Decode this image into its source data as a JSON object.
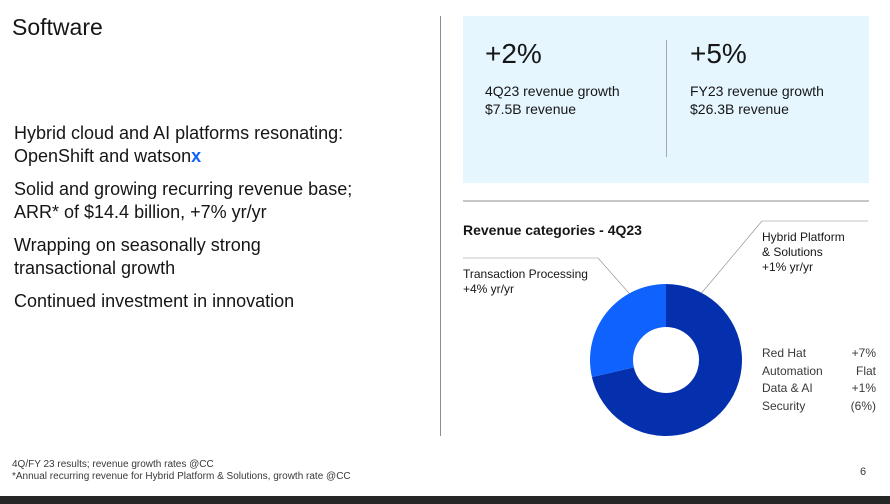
{
  "title": "Software",
  "bullets": [
    {
      "text": "Hybrid cloud and AI platforms resonating: OpenShift and watson",
      "accent": "x"
    },
    {
      "text": "Solid and growing recurring revenue base; ARR* of $14.4 billion, +7% yr/yr"
    },
    {
      "text": "Wrapping on seasonally strong transactional growth"
    },
    {
      "text": "Continued investment in innovation"
    }
  ],
  "kpis": [
    {
      "value": "+2%",
      "line1": "4Q23 revenue growth",
      "line2": "$7.5B revenue"
    },
    {
      "value": "+5%",
      "line1": "FY23 revenue growth",
      "line2": "$26.3B revenue"
    }
  ],
  "chart_data": {
    "type": "pie",
    "title": "Revenue categories - 4Q23",
    "donut": true,
    "slices": [
      {
        "name": "Hybrid Platform & Solutions",
        "share": 0.714,
        "growth": "+1% yr/yr",
        "color": "#0530ad"
      },
      {
        "name": "Transaction Processing",
        "share": 0.286,
        "growth": "+4% yr/yr",
        "color": "#0f62fe"
      }
    ],
    "segments": [
      {
        "name": "Red Hat",
        "value": "+7%"
      },
      {
        "name": "Automation",
        "value": "Flat"
      },
      {
        "name": "Data & AI",
        "value": "+1%"
      },
      {
        "name": "Security",
        "value": "(6%)"
      }
    ]
  },
  "labels": {
    "hps1": "Hybrid Platform",
    "hps2": "& Solutions"
  },
  "footer": [
    "4Q/FY 23 results; revenue growth rates @CC",
    "*Annual recurring revenue for Hybrid Platform & Solutions, growth rate @CC"
  ],
  "page_number": "6"
}
